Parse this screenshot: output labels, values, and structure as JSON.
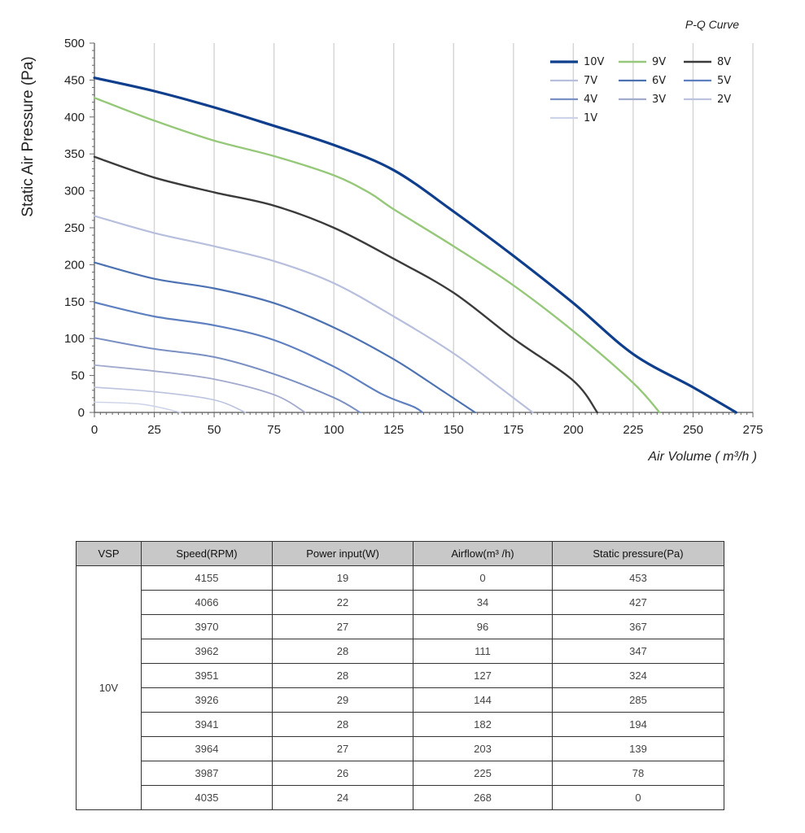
{
  "chart_data": {
    "type": "line",
    "title": "P-Q Curve",
    "xlabel": "Air Volume ( m³/h )",
    "ylabel": "Static Air Pressure  (Pa)",
    "xlim": [
      0,
      275
    ],
    "ylim": [
      0,
      500
    ],
    "xticks": [
      "0",
      "25",
      "50",
      "75",
      "100",
      "125",
      "150",
      "175",
      "200",
      "225",
      "250",
      "275"
    ],
    "yticks": [
      "0",
      "50",
      "100",
      "150",
      "200",
      "250",
      "300",
      "350",
      "400",
      "450",
      "500"
    ],
    "grid": "vertical",
    "legend": "top-right",
    "series": [
      {
        "name": "10V",
        "color": "#0f3f8c",
        "width": 3.2,
        "points": [
          [
            0,
            453
          ],
          [
            25,
            435
          ],
          [
            50,
            413
          ],
          [
            75,
            388
          ],
          [
            100,
            362
          ],
          [
            125,
            328
          ],
          [
            150,
            272
          ],
          [
            175,
            212
          ],
          [
            200,
            148
          ],
          [
            225,
            79
          ],
          [
            250,
            34
          ],
          [
            268,
            0
          ]
        ]
      },
      {
        "name": "9V",
        "color": "#96c87a",
        "width": 2.4,
        "points": [
          [
            0,
            426
          ],
          [
            25,
            395
          ],
          [
            50,
            368
          ],
          [
            75,
            347
          ],
          [
            100,
            321
          ],
          [
            115,
            297
          ],
          [
            125,
            275
          ],
          [
            150,
            225
          ],
          [
            175,
            172
          ],
          [
            200,
            110
          ],
          [
            225,
            40
          ],
          [
            236,
            0
          ]
        ]
      },
      {
        "name": "8V",
        "color": "#3b3b3b",
        "width": 2.4,
        "points": [
          [
            0,
            346
          ],
          [
            25,
            318
          ],
          [
            50,
            298
          ],
          [
            75,
            280
          ],
          [
            100,
            250
          ],
          [
            125,
            208
          ],
          [
            150,
            162
          ],
          [
            175,
            100
          ],
          [
            200,
            43
          ],
          [
            210,
            0
          ]
        ]
      },
      {
        "name": "7V",
        "color": "#b7bfdd",
        "width": 2.2,
        "points": [
          [
            0,
            266
          ],
          [
            25,
            243
          ],
          [
            50,
            225
          ],
          [
            75,
            205
          ],
          [
            100,
            175
          ],
          [
            125,
            130
          ],
          [
            150,
            80
          ],
          [
            170,
            32
          ],
          [
            183,
            0
          ]
        ]
      },
      {
        "name": "6V",
        "color": "#4d72b2",
        "width": 2.2,
        "points": [
          [
            0,
            203
          ],
          [
            25,
            181
          ],
          [
            50,
            168
          ],
          [
            75,
            148
          ],
          [
            100,
            115
          ],
          [
            125,
            72
          ],
          [
            145,
            30
          ],
          [
            159,
            0
          ]
        ]
      },
      {
        "name": "5V",
        "color": "#5e80c0",
        "width": 2.2,
        "points": [
          [
            0,
            149
          ],
          [
            25,
            130
          ],
          [
            50,
            118
          ],
          [
            75,
            98
          ],
          [
            100,
            62
          ],
          [
            120,
            25
          ],
          [
            133,
            8
          ],
          [
            137,
            0
          ]
        ]
      },
      {
        "name": "4V",
        "color": "#7a8fc2",
        "width": 2.0,
        "points": [
          [
            0,
            101
          ],
          [
            25,
            86
          ],
          [
            50,
            75
          ],
          [
            75,
            52
          ],
          [
            100,
            20
          ],
          [
            111,
            0
          ]
        ]
      },
      {
        "name": "3V",
        "color": "#a2aacd",
        "width": 1.8,
        "points": [
          [
            0,
            64
          ],
          [
            25,
            56
          ],
          [
            50,
            45
          ],
          [
            75,
            24
          ],
          [
            88,
            0
          ]
        ]
      },
      {
        "name": "2V",
        "color": "#bcc3de",
        "width": 1.6,
        "points": [
          [
            0,
            34
          ],
          [
            25,
            28
          ],
          [
            50,
            17
          ],
          [
            63,
            0
          ]
        ]
      },
      {
        "name": "1V",
        "color": "#ccd2e8",
        "width": 1.4,
        "points": [
          [
            0,
            14
          ],
          [
            20,
            11
          ],
          [
            36,
            0
          ]
        ]
      }
    ]
  },
  "table": {
    "headers": [
      "VSP",
      "Speed(RPM)",
      "Power input(W)",
      "Airflow(m³ /h)",
      "Static pressure(Pa)"
    ],
    "vsp": "10V",
    "rows": [
      [
        "4155",
        "19",
        "0",
        "453"
      ],
      [
        "4066",
        "22",
        "34",
        "427"
      ],
      [
        "3970",
        "27",
        "96",
        "367"
      ],
      [
        "3962",
        "28",
        "111",
        "347"
      ],
      [
        "3951",
        "28",
        "127",
        "324"
      ],
      [
        "3926",
        "29",
        "144",
        "285"
      ],
      [
        "3941",
        "28",
        "182",
        "194"
      ],
      [
        "3964",
        "27",
        "203",
        "139"
      ],
      [
        "3987",
        "26",
        "225",
        "78"
      ],
      [
        "4035",
        "24",
        "268",
        "0"
      ]
    ]
  }
}
